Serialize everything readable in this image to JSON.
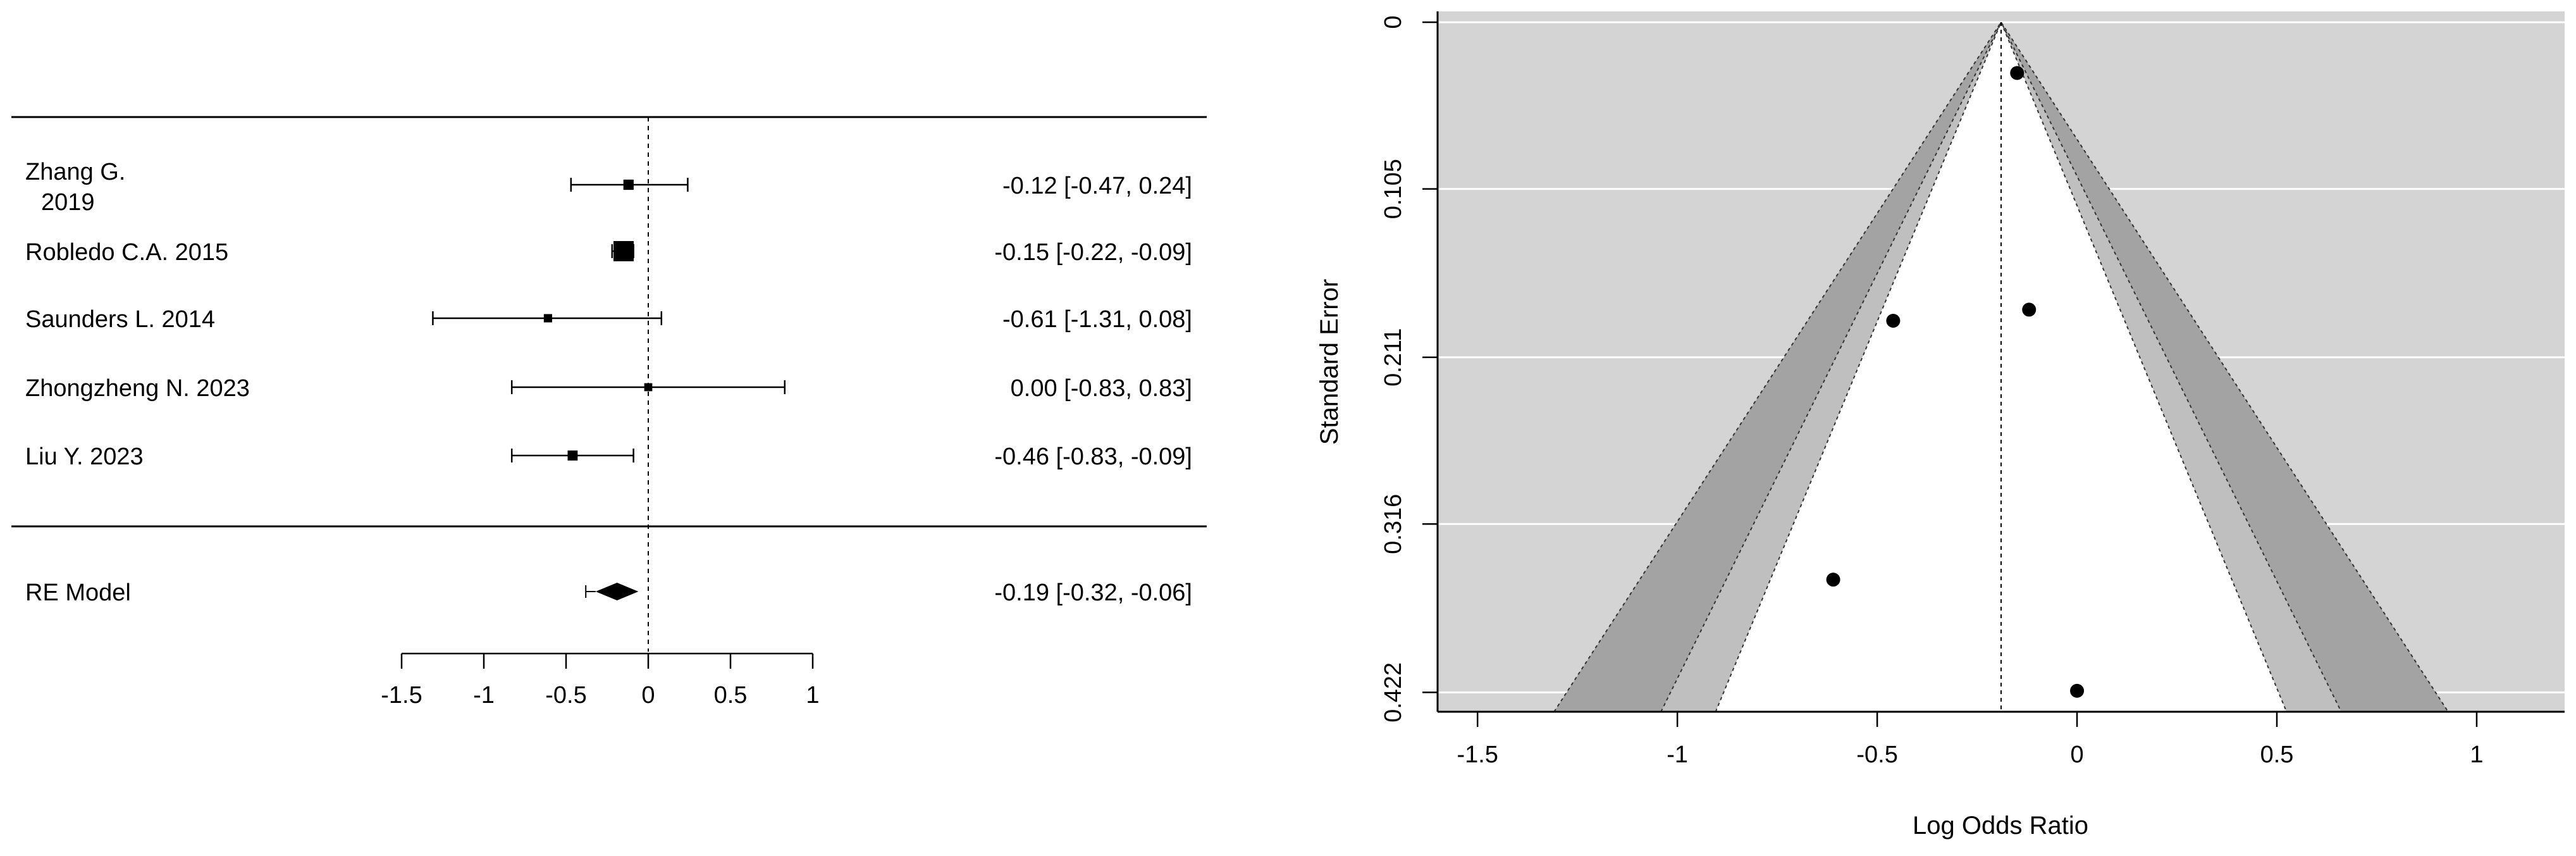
{
  "chart_data": [
    {
      "type": "forest",
      "studies": [
        {
          "label_lines": [
            "Zhang G.",
            "2019"
          ],
          "estimate": -0.12,
          "ci": [
            -0.47,
            0.24
          ],
          "ci_text": "-0.12 [-0.47,  0.24]",
          "weight": 0.08
        },
        {
          "label_lines": [
            "Robledo C.A. 2015"
          ],
          "estimate": -0.15,
          "ci": [
            -0.22,
            -0.09
          ],
          "ci_text": "-0.15 [-0.22, -0.09]",
          "weight": 1.0
        },
        {
          "label_lines": [
            "Saunders L. 2014"
          ],
          "estimate": -0.61,
          "ci": [
            -1.31,
            0.08
          ],
          "ci_text": "-0.61 [-1.31,  0.08]",
          "weight": 0.02
        },
        {
          "label_lines": [
            "Zhongzheng N. 2023"
          ],
          "estimate": 0.0,
          "ci": [
            -0.83,
            0.83
          ],
          "ci_text": "0.00 [-0.83,  0.83]",
          "weight": 0.015
        },
        {
          "label_lines": [
            "Liu Y. 2023"
          ],
          "estimate": -0.46,
          "ci": [
            -0.83,
            -0.09
          ],
          "ci_text": "-0.46 [-0.83, -0.09]",
          "weight": 0.07
        }
      ],
      "summary": {
        "label": "RE Model",
        "estimate": -0.19,
        "ci": [
          -0.32,
          -0.06
        ],
        "ci_text": "-0.19 [-0.32, -0.06]"
      },
      "xlim": [
        -1.5,
        1
      ],
      "x_ticks": [
        -1.5,
        -1,
        -0.5,
        0,
        0.5,
        1
      ],
      "x_tick_labels": [
        "-1.5",
        "-1",
        "-0.5",
        "0",
        "0.5",
        "1"
      ],
      "reference_line": 0
    },
    {
      "type": "funnel",
      "xlabel": "Log Odds Ratio",
      "ylabel": "Standard Error",
      "xlim": [
        -1.6,
        1.22
      ],
      "ylim": [
        0.4342,
        -0.0068
      ],
      "x_ticks": [
        -1.5,
        -1,
        -0.5,
        0,
        0.5,
        1
      ],
      "x_tick_labels": [
        "-1.5",
        "-1",
        "-0.5",
        "0",
        "0.5",
        "1"
      ],
      "y_ticks": [
        0,
        0.105,
        0.211,
        0.316,
        0.422
      ],
      "y_tick_labels": [
        "0",
        "0.105",
        "0.211",
        "0.316",
        "0.422"
      ],
      "center": -0.19,
      "contours": [
        {
          "z": 1.645,
          "color": "#ffffff"
        },
        {
          "z": 1.96,
          "color": "#bfbfbf"
        },
        {
          "z": 2.576,
          "color": "#a3a3a3"
        }
      ],
      "background_color": "#d4d4d4",
      "points": [
        {
          "x": -0.15,
          "y": 0.032
        },
        {
          "x": -0.12,
          "y": 0.181
        },
        {
          "x": -0.46,
          "y": 0.188
        },
        {
          "x": -0.61,
          "y": 0.351
        },
        {
          "x": 0.0,
          "y": 0.421
        }
      ]
    }
  ]
}
